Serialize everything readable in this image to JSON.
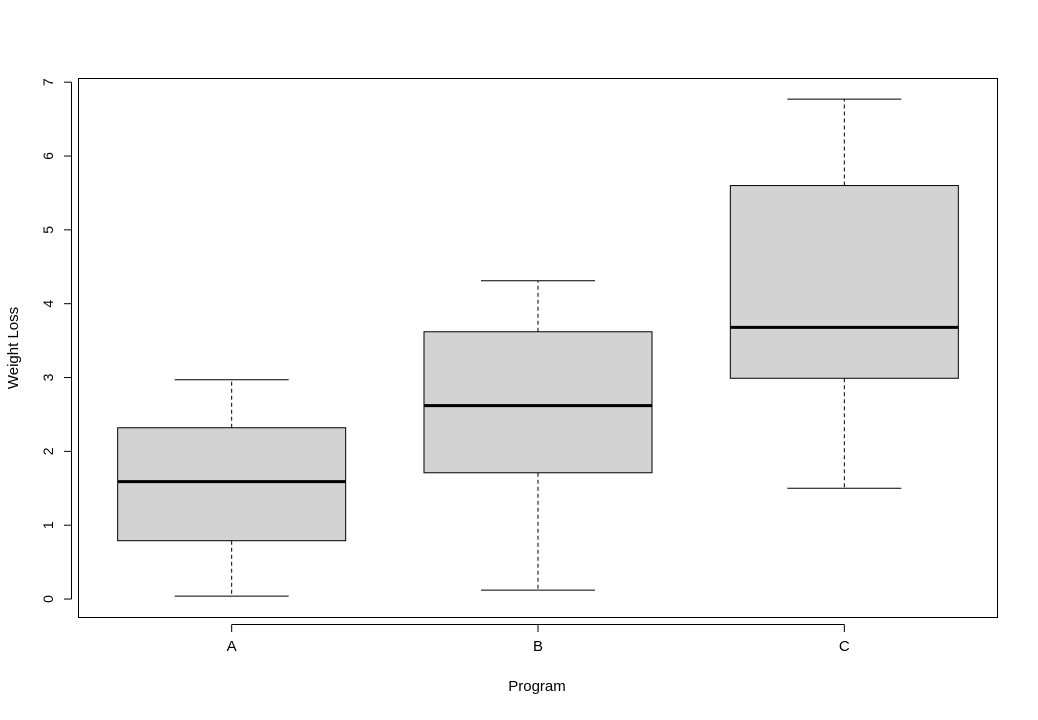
{
  "chart_data": {
    "type": "boxplot",
    "title": "",
    "xlabel": "Program",
    "ylabel": "Weight Loss",
    "categories": [
      "A",
      "B",
      "C"
    ],
    "ylim": [
      -0.25,
      7.05
    ],
    "yticks": [
      0,
      1,
      2,
      3,
      4,
      5,
      6,
      7
    ],
    "box_fill": "#d3d3d3",
    "line_color": "#000000",
    "boxes": [
      {
        "category": "A",
        "whisker_low": 0.04,
        "q1": 0.79,
        "median": 1.59,
        "q3": 2.32,
        "whisker_high": 2.97
      },
      {
        "category": "B",
        "whisker_low": 0.12,
        "q1": 1.71,
        "median": 2.62,
        "q3": 3.62,
        "whisker_high": 4.31
      },
      {
        "category": "C",
        "whisker_low": 1.5,
        "q1": 2.99,
        "median": 3.68,
        "q3": 5.6,
        "whisker_high": 6.77
      }
    ]
  }
}
